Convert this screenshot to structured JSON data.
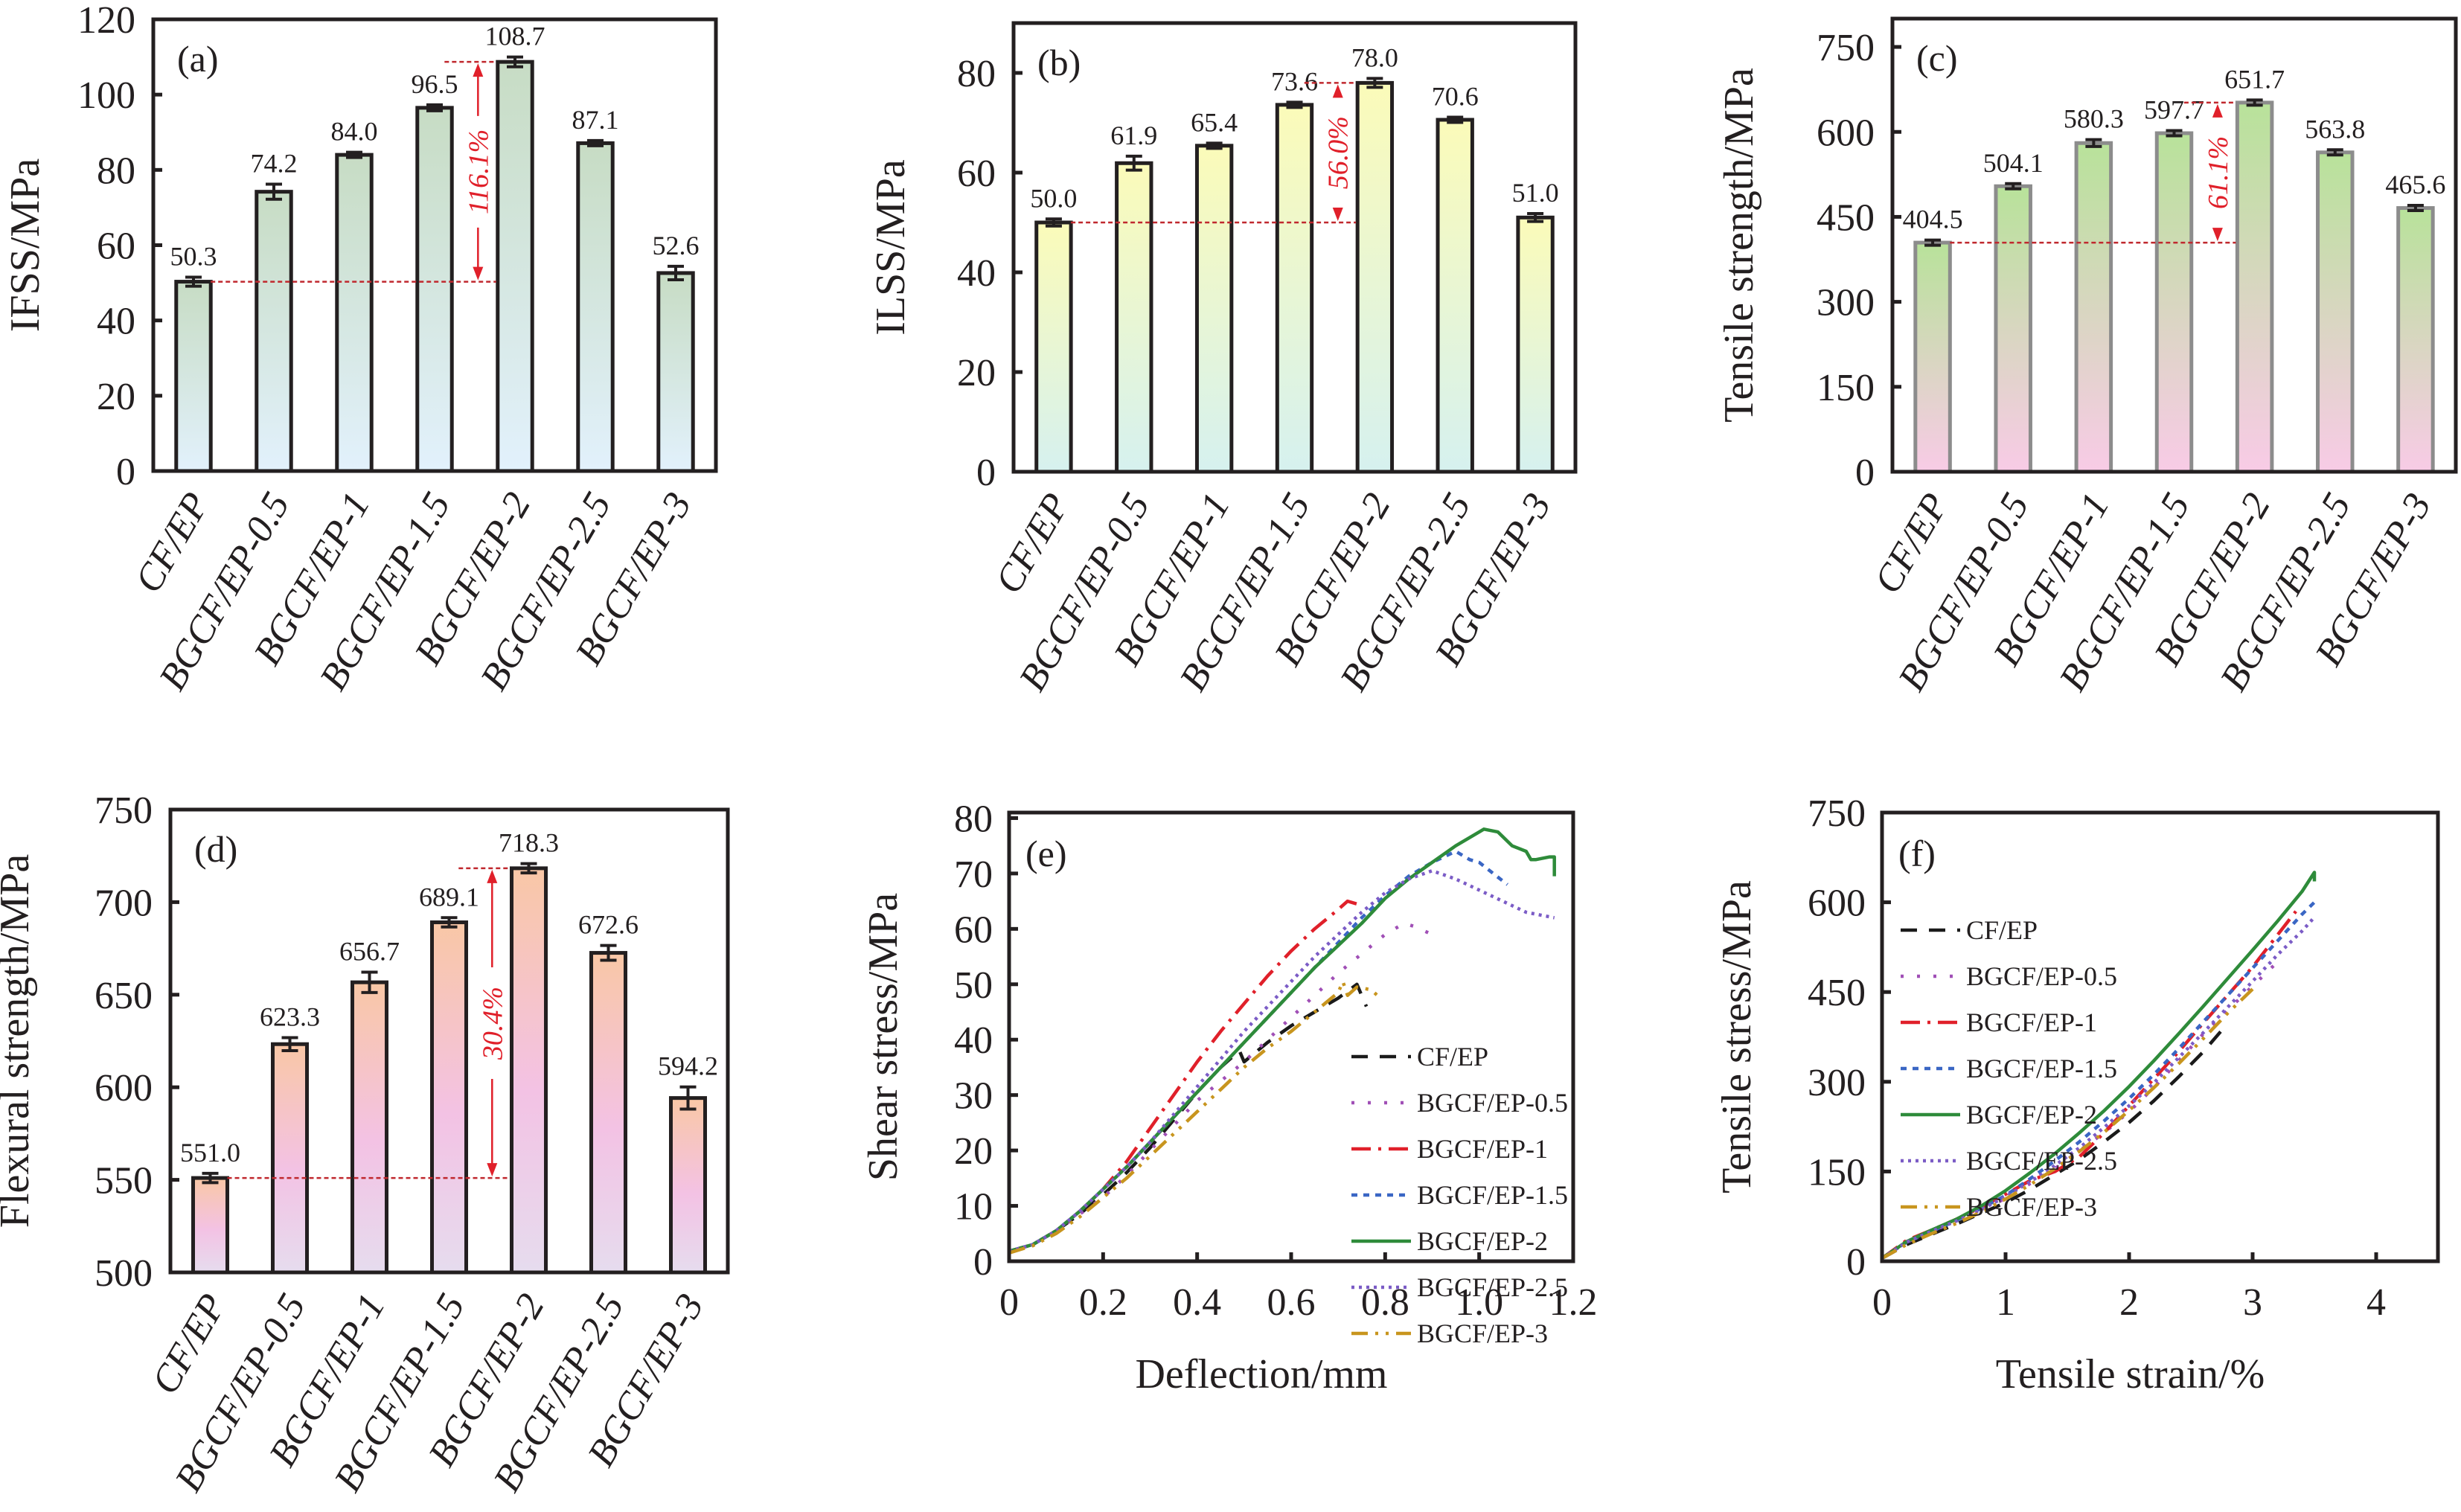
{
  "figure": {
    "series_styles": [
      {
        "name": "CF/EP",
        "color": "#1a1a1a",
        "dash": "22 16"
      },
      {
        "name": "BGCF/EP-0.5",
        "color": "#a04fb6",
        "dash": "4 18"
      },
      {
        "name": "BGCF/EP-1",
        "color": "#e0202a",
        "dash": "26 10 4 10"
      },
      {
        "name": "BGCF/EP-1.5",
        "color": "#3a66c4",
        "dash": "8 8"
      },
      {
        "name": "BGCF/EP-2",
        "color": "#2e8b3a",
        "dash": ""
      },
      {
        "name": "BGCF/EP-2.5",
        "color": "#7b5cc6",
        "dash": "4 6"
      },
      {
        "name": "BGCF/EP-3",
        "color": "#c8951e",
        "dash": "22 10 4 10 4 10"
      }
    ]
  },
  "chart_data": [
    {
      "id": "a",
      "type": "bar",
      "panel_label": "(a)",
      "title": "",
      "xlabel": "",
      "ylabel": "IFSS/MPa",
      "categories": [
        "CF/EP",
        "BGCF/EP-0.5",
        "BGCF/EP-1",
        "BGCF/EP-1.5",
        "BGCF/EP-2",
        "BGCF/EP-2.5",
        "BGCF/EP-3"
      ],
      "values": [
        50.3,
        74.2,
        84.0,
        96.5,
        108.7,
        87.1,
        52.6
      ],
      "value_labels": [
        "50.3",
        "74.2",
        "84.0",
        "96.5",
        "108.7",
        "87.1",
        "52.6"
      ],
      "errors": [
        1.2,
        2.0,
        0.6,
        0.8,
        1.3,
        0.5,
        1.8
      ],
      "ylim": [
        0,
        120
      ],
      "yticks": [
        0,
        20,
        40,
        60,
        80,
        100,
        120
      ],
      "grid": false,
      "bar_gradient": {
        "top": "#c7dcc4",
        "bottom": "#e2f1fc"
      },
      "bar_outline": "#231f20",
      "annotation": {
        "text": "116.1%",
        "from_value": 50.3,
        "to_value": 108.7,
        "from_index": 0,
        "to_index": 4
      }
    },
    {
      "id": "b",
      "type": "bar",
      "panel_label": "(b)",
      "title": "",
      "xlabel": "",
      "ylabel": "ILSS/MPa",
      "categories": [
        "CF/EP",
        "BGCF/EP-0.5",
        "BGCF/EP-1",
        "BGCF/EP-1.5",
        "BGCF/EP-2",
        "BGCF/EP-2.5",
        "BGCF/EP-3"
      ],
      "values": [
        50.0,
        61.9,
        65.4,
        73.6,
        78.0,
        70.6,
        51.0
      ],
      "value_labels": [
        "50.0",
        "61.9",
        "65.4",
        "73.6",
        "78.0",
        "70.6",
        "51.0"
      ],
      "errors": [
        0.7,
        1.4,
        0.3,
        0.2,
        0.9,
        0.3,
        0.8
      ],
      "ylim": [
        0,
        90
      ],
      "yticks": [
        0,
        20,
        40,
        60,
        80
      ],
      "grid": false,
      "bar_gradient": {
        "top": "#fbfbb9",
        "bottom": "#d6f1ef"
      },
      "bar_outline": "#231f20",
      "annotation": {
        "text": "56.0%",
        "from_value": 50.0,
        "to_value": 78.0,
        "from_index": 0,
        "to_index": 4
      }
    },
    {
      "id": "c",
      "type": "bar",
      "panel_label": "(c)",
      "title": "",
      "xlabel": "",
      "ylabel": "Tensile strength/MPa",
      "categories": [
        "CF/EP",
        "BGCF/EP-0.5",
        "BGCF/EP-1",
        "BGCF/EP-1.5",
        "BGCF/EP-2",
        "BGCF/EP-2.5",
        "BGCF/EP-3"
      ],
      "values": [
        404.5,
        504.1,
        580.3,
        597.7,
        651.7,
        563.8,
        465.6
      ],
      "value_labels": [
        "404.5",
        "504.1",
        "580.3",
        "597.7",
        "651.7",
        "563.8",
        "465.6"
      ],
      "errors": [
        2,
        3,
        6,
        2,
        2,
        2,
        2
      ],
      "ylim": [
        0,
        800
      ],
      "yticks": [
        0,
        150,
        300,
        450,
        600,
        750
      ],
      "grid": false,
      "bar_gradient": {
        "top": "#b8e29a",
        "bottom": "#f8cbe6"
      },
      "bar_outline": "#8c8c8c",
      "annotation": {
        "text": "61.1%",
        "from_value": 404.5,
        "to_value": 651.7,
        "from_index": 0,
        "to_index": 4
      }
    },
    {
      "id": "d",
      "type": "bar",
      "panel_label": "(d)",
      "title": "",
      "xlabel": "",
      "ylabel": "Flexural strength/MPa",
      "categories": [
        "CF/EP",
        "BGCF/EP-0.5",
        "BGCF/EP-1",
        "BGCF/EP-1.5",
        "BGCF/EP-2",
        "BGCF/EP-2.5",
        "BGCF/EP-3"
      ],
      "values": [
        551.0,
        623.3,
        656.7,
        689.1,
        718.3,
        672.6,
        594.2
      ],
      "value_labels": [
        "551.0",
        "623.3",
        "656.7",
        "689.1",
        "718.3",
        "672.6",
        "594.2"
      ],
      "errors": [
        2.5,
        3.5,
        5.5,
        2.5,
        2.5,
        4.0,
        6.0
      ],
      "ylim": [
        500,
        750
      ],
      "yticks": [
        500,
        550,
        600,
        650,
        700,
        750
      ],
      "grid": false,
      "bar_gradient": {
        "top": "#f9c7a6",
        "mid": "#f3c2e4",
        "bottom": "#e6dcee"
      },
      "bar_outline": "#231f20",
      "annotation": {
        "text": "30.4%",
        "from_value": 551.0,
        "to_value": 718.3,
        "from_index": 0,
        "to_index": 4
      }
    },
    {
      "id": "e",
      "type": "line",
      "panel_label": "(e)",
      "title": "",
      "xlabel": "Deflection/mm",
      "ylabel": "Shear stress/MPa",
      "xlim": [
        0,
        1.2
      ],
      "ylim": [
        0,
        81
      ],
      "xticks": [
        0,
        0.2,
        0.4,
        0.6,
        0.8,
        1.0,
        1.2
      ],
      "xtick_labels": [
        "0",
        "0.2",
        "0.4",
        "0.6",
        "0.8",
        "1.0",
        "1.2"
      ],
      "yticks": [
        0,
        10,
        20,
        30,
        40,
        50,
        60,
        70,
        80
      ],
      "grid": false,
      "legend_position": "center-right",
      "series": [
        {
          "name": "CF/EP",
          "x": [
            0,
            0.05,
            0.1,
            0.15,
            0.2,
            0.25,
            0.3,
            0.35,
            0.4,
            0.45,
            0.49,
            0.5,
            0.55,
            0.6,
            0.65,
            0.7,
            0.74,
            0.76
          ],
          "y": [
            1.8,
            3,
            5.5,
            8.5,
            12,
            16,
            20.5,
            25.5,
            30.5,
            35,
            38,
            36,
            39.5,
            42.5,
            45,
            47.5,
            50,
            46
          ]
        },
        {
          "name": "BGCF/EP-0.5",
          "x": [
            0,
            0.05,
            0.1,
            0.15,
            0.2,
            0.25,
            0.3,
            0.35,
            0.4,
            0.45,
            0.5,
            0.55,
            0.6,
            0.65,
            0.7,
            0.75,
            0.8,
            0.84,
            0.86,
            0.9
          ],
          "y": [
            1.8,
            3,
            5.5,
            8.5,
            11.5,
            15.5,
            20,
            24.5,
            29,
            32.5,
            36,
            40,
            44,
            48,
            52,
            55.5,
            59,
            61,
            60.5,
            59
          ]
        },
        {
          "name": "BGCF/EP-1",
          "x": [
            0,
            0.05,
            0.1,
            0.15,
            0.2,
            0.25,
            0.3,
            0.35,
            0.4,
            0.45,
            0.5,
            0.55,
            0.6,
            0.65,
            0.7,
            0.72,
            0.74
          ],
          "y": [
            1.8,
            3,
            5.5,
            9,
            13,
            18,
            24,
            30,
            36,
            41.5,
            46.5,
            51.5,
            56,
            60,
            63.5,
            65,
            64.5
          ]
        },
        {
          "name": "BGCF/EP-1.5",
          "x": [
            0,
            0.05,
            0.1,
            0.15,
            0.2,
            0.25,
            0.3,
            0.35,
            0.4,
            0.45,
            0.5,
            0.55,
            0.6,
            0.65,
            0.7,
            0.75,
            0.8,
            0.85,
            0.9,
            0.95,
            0.98,
            1.0,
            1.03,
            1.06
          ],
          "y": [
            1.8,
            3,
            5.5,
            9,
            13,
            17,
            21.5,
            26,
            30.5,
            35,
            39.5,
            44,
            48.5,
            53,
            57.5,
            62,
            66,
            69.5,
            72,
            74,
            72.5,
            72,
            70,
            68
          ]
        },
        {
          "name": "BGCF/EP-2",
          "x": [
            0,
            0.05,
            0.1,
            0.15,
            0.2,
            0.25,
            0.3,
            0.35,
            0.4,
            0.45,
            0.5,
            0.55,
            0.6,
            0.65,
            0.7,
            0.75,
            0.8,
            0.85,
            0.9,
            0.95,
            1.0,
            1.01,
            1.04,
            1.07,
            1.1,
            1.11,
            1.12,
            1.15,
            1.16,
            1.16
          ],
          "y": [
            1.8,
            3,
            5.5,
            9,
            13,
            17,
            21.5,
            26,
            30.5,
            35,
            39.5,
            44,
            48.5,
            53,
            57,
            61,
            65.5,
            69,
            72,
            75,
            77.5,
            78,
            77.5,
            75,
            74,
            72.5,
            72.5,
            73,
            73,
            69.5
          ]
        },
        {
          "name": "BGCF/EP-2.5",
          "x": [
            0,
            0.05,
            0.1,
            0.15,
            0.2,
            0.25,
            0.3,
            0.35,
            0.4,
            0.45,
            0.5,
            0.55,
            0.6,
            0.65,
            0.7,
            0.75,
            0.8,
            0.85,
            0.9,
            0.95,
            1.0,
            1.05,
            1.1,
            1.16
          ],
          "y": [
            1.8,
            3,
            5.5,
            9,
            13,
            17,
            21.5,
            26.5,
            31.5,
            36.5,
            41.5,
            46,
            50.5,
            55,
            59,
            63,
            66.5,
            69,
            70.5,
            69,
            67,
            65,
            63,
            62
          ]
        },
        {
          "name": "BGCF/EP-3",
          "x": [
            0,
            0.05,
            0.1,
            0.15,
            0.2,
            0.25,
            0.3,
            0.35,
            0.4,
            0.45,
            0.5,
            0.55,
            0.6,
            0.65,
            0.7,
            0.71,
            0.72,
            0.74,
            0.77,
            0.79
          ],
          "y": [
            1.5,
            2.8,
            5,
            8,
            11.5,
            15,
            19,
            23,
            27,
            31,
            35,
            38.5,
            41.5,
            45,
            48.5,
            50.5,
            48,
            49.5,
            49,
            47.5
          ]
        }
      ]
    },
    {
      "id": "f",
      "type": "line",
      "panel_label": "(f)",
      "title": "",
      "xlabel": "Tensile strain/%",
      "ylabel": "Tensile stress/MPa",
      "xlim": [
        0,
        4.5
      ],
      "ylim": [
        0,
        750
      ],
      "xticks": [
        0,
        1,
        2,
        3,
        4
      ],
      "xtick_labels": [
        "0",
        "1",
        "2",
        "3",
        "4"
      ],
      "yticks": [
        0,
        150,
        300,
        450,
        600,
        750
      ],
      "grid": false,
      "legend_position": "top-left",
      "series": [
        {
          "name": "CF/EP",
          "x": [
            0,
            0.2,
            0.4,
            0.6,
            0.8,
            1.0,
            1.2,
            1.4,
            1.6,
            1.8,
            2.0,
            2.2,
            2.4,
            2.6,
            2.8
          ],
          "y": [
            5,
            28,
            45,
            62,
            80,
            98,
            120,
            145,
            170,
            200,
            232,
            268,
            308,
            350,
            398
          ]
        },
        {
          "name": "BGCF/EP-0.5",
          "x": [
            0,
            0.2,
            0.4,
            0.6,
            0.8,
            1.0,
            1.2,
            1.4,
            1.6,
            1.8,
            2.0,
            2.2,
            2.4,
            2.6,
            2.8,
            3.0,
            3.2
          ],
          "y": [
            5,
            32,
            50,
            67,
            85,
            105,
            130,
            155,
            185,
            215,
            250,
            290,
            335,
            380,
            420,
            460,
            500
          ]
        },
        {
          "name": "BGCF/EP-1",
          "x": [
            0,
            0.2,
            0.4,
            0.6,
            0.8,
            1.0,
            1.2,
            1.4,
            1.6,
            1.8,
            2.0,
            2.2,
            2.4,
            2.6,
            2.8,
            3.0,
            3.2,
            3.35
          ],
          "y": [
            5,
            35,
            52,
            70,
            90,
            112,
            135,
            150,
            175,
            215,
            260,
            305,
            350,
            398,
            445,
            492,
            545,
            585
          ]
        },
        {
          "name": "BGCF/EP-1.5",
          "x": [
            0,
            0.2,
            0.4,
            0.6,
            0.8,
            1.0,
            1.2,
            1.4,
            1.6,
            1.8,
            2.0,
            2.2,
            2.4,
            2.6,
            2.8,
            3.0,
            3.2,
            3.4,
            3.5
          ],
          "y": [
            5,
            32,
            50,
            68,
            88,
            110,
            138,
            168,
            200,
            235,
            272,
            312,
            355,
            400,
            445,
            490,
            535,
            580,
            600
          ]
        },
        {
          "name": "BGCF/EP-2",
          "x": [
            0,
            0.2,
            0.4,
            0.6,
            0.8,
            1.0,
            1.2,
            1.4,
            1.6,
            1.8,
            2.0,
            2.2,
            2.4,
            2.6,
            2.8,
            3.0,
            3.2,
            3.4,
            3.5,
            3.5
          ],
          "y": [
            5,
            33,
            52,
            70,
            92,
            118,
            148,
            180,
            215,
            252,
            292,
            335,
            380,
            426,
            473,
            520,
            568,
            618,
            650,
            635
          ]
        },
        {
          "name": "BGCF/EP-2.5",
          "x": [
            0,
            0.2,
            0.4,
            0.6,
            0.8,
            1.0,
            1.2,
            1.4,
            1.6,
            1.8,
            2.0,
            2.2,
            2.4,
            2.6,
            2.8,
            3.0,
            3.2,
            3.4,
            3.5
          ],
          "y": [
            5,
            32,
            50,
            67,
            86,
            108,
            133,
            160,
            190,
            224,
            260,
            298,
            340,
            382,
            425,
            468,
            512,
            552,
            575
          ]
        },
        {
          "name": "BGCF/EP-3",
          "x": [
            0,
            0.2,
            0.4,
            0.6,
            0.8,
            1.0,
            1.2,
            1.4,
            1.6,
            1.8,
            2.0,
            2.2,
            2.4,
            2.6,
            2.8,
            3.0
          ],
          "y": [
            5,
            28,
            46,
            63,
            82,
            104,
            128,
            155,
            184,
            216,
            252,
            290,
            330,
            372,
            415,
            455
          ]
        }
      ]
    }
  ]
}
